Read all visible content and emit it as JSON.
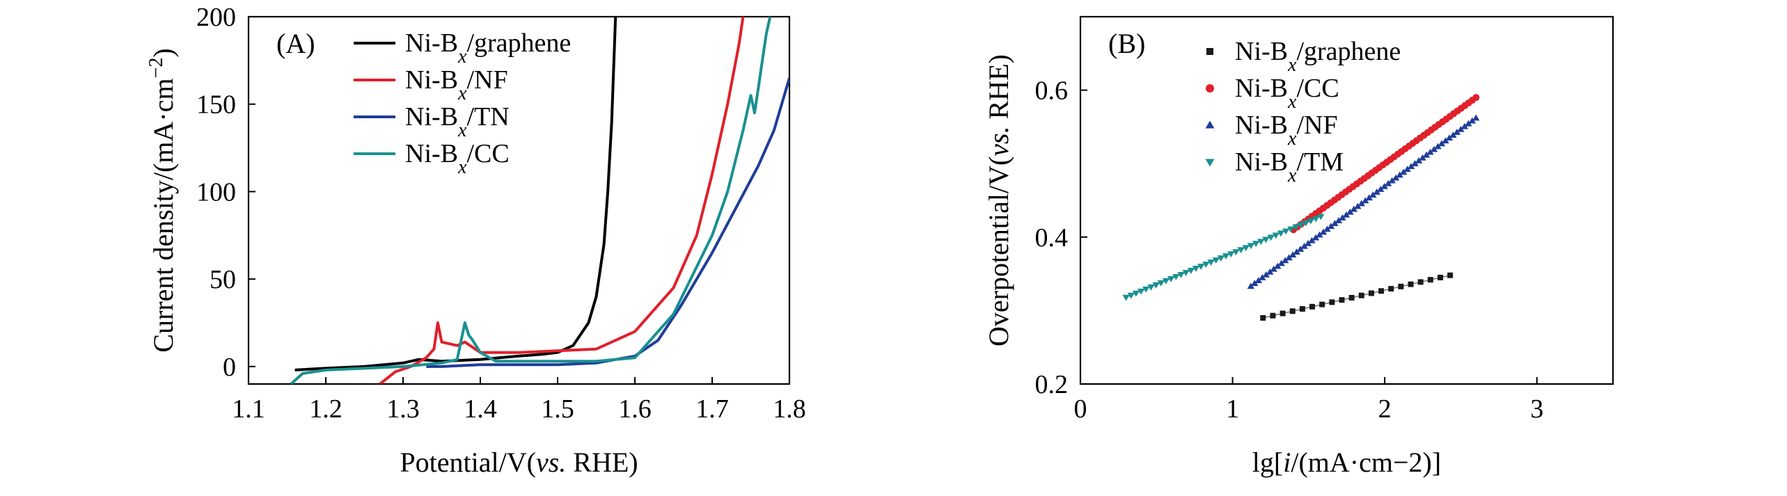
{
  "chart_data": [
    {
      "type": "line",
      "panel": "(A)",
      "xlabel": {
        "prefix": "Potential/V(",
        "italic": "vs.",
        "suffix": " RHE)"
      },
      "ylabel": {
        "prefix": "Current density/(mA·cm",
        "sup": "−2",
        "suffix": ")"
      },
      "xlim": [
        1.1,
        1.8
      ],
      "ylim": [
        -10,
        200
      ],
      "xticks": [
        1.1,
        1.2,
        1.3,
        1.4,
        1.5,
        1.6,
        1.7,
        1.8
      ],
      "xtick_labels": [
        "1.1",
        "1.2",
        "1.3",
        "1.4",
        "1.5",
        "1.6",
        "1.7",
        "1.8"
      ],
      "yticks": [
        0,
        50,
        100,
        150,
        200
      ],
      "ytick_labels": [
        "0",
        "50",
        "100",
        "150",
        "200"
      ],
      "legend_position": "top-center",
      "series": [
        {
          "name": "Ni-Bx/graphene",
          "label": {
            "base": "Ni-B",
            "sub": "x",
            "rest": "/graphene"
          },
          "color": "#000000",
          "points": [
            [
              1.16,
              -2
            ],
            [
              1.2,
              -1
            ],
            [
              1.25,
              0
            ],
            [
              1.3,
              2
            ],
            [
              1.32,
              4
            ],
            [
              1.35,
              3
            ],
            [
              1.4,
              4
            ],
            [
              1.45,
              6
            ],
            [
              1.48,
              7
            ],
            [
              1.5,
              8
            ],
            [
              1.52,
              12
            ],
            [
              1.54,
              25
            ],
            [
              1.55,
              40
            ],
            [
              1.56,
              70
            ],
            [
              1.565,
              100
            ],
            [
              1.57,
              140
            ],
            [
              1.575,
              200
            ]
          ]
        },
        {
          "name": "Ni-Bx/NF",
          "label": {
            "base": "Ni-B",
            "sub": "x",
            "rest": "/NF"
          },
          "color": "#e0202a",
          "points": [
            [
              1.27,
              -10
            ],
            [
              1.29,
              -3
            ],
            [
              1.31,
              0
            ],
            [
              1.33,
              5
            ],
            [
              1.34,
              10
            ],
            [
              1.345,
              25
            ],
            [
              1.35,
              14
            ],
            [
              1.37,
              12
            ],
            [
              1.38,
              14
            ],
            [
              1.4,
              8
            ],
            [
              1.45,
              8
            ],
            [
              1.5,
              9
            ],
            [
              1.55,
              10
            ],
            [
              1.6,
              20
            ],
            [
              1.65,
              45
            ],
            [
              1.68,
              75
            ],
            [
              1.7,
              110
            ],
            [
              1.72,
              150
            ],
            [
              1.735,
              185
            ],
            [
              1.74,
              200
            ]
          ]
        },
        {
          "name": "Ni-Bx/TN",
          "label": {
            "base": "Ni-B",
            "sub": "x",
            "rest": "/TN"
          },
          "color": "#1f3d99",
          "points": [
            [
              1.33,
              0
            ],
            [
              1.35,
              0
            ],
            [
              1.4,
              1
            ],
            [
              1.45,
              1
            ],
            [
              1.5,
              1
            ],
            [
              1.55,
              2
            ],
            [
              1.6,
              6
            ],
            [
              1.63,
              15
            ],
            [
              1.66,
              35
            ],
            [
              1.7,
              65
            ],
            [
              1.73,
              90
            ],
            [
              1.76,
              115
            ],
            [
              1.78,
              135
            ],
            [
              1.8,
              165
            ]
          ]
        },
        {
          "name": "Ni-Bx/CC",
          "label": {
            "base": "Ni-B",
            "sub": "x",
            "rest": "/CC"
          },
          "color": "#1a9090",
          "points": [
            [
              1.155,
              -10
            ],
            [
              1.17,
              -4
            ],
            [
              1.2,
              -2
            ],
            [
              1.3,
              0
            ],
            [
              1.35,
              2
            ],
            [
              1.37,
              4
            ],
            [
              1.38,
              25
            ],
            [
              1.385,
              18
            ],
            [
              1.39,
              15
            ],
            [
              1.4,
              8
            ],
            [
              1.42,
              3
            ],
            [
              1.5,
              3
            ],
            [
              1.55,
              3
            ],
            [
              1.6,
              5
            ],
            [
              1.65,
              30
            ],
            [
              1.7,
              75
            ],
            [
              1.72,
              100
            ],
            [
              1.74,
              135
            ],
            [
              1.75,
              155
            ],
            [
              1.755,
              145
            ],
            [
              1.76,
              160
            ],
            [
              1.77,
              190
            ],
            [
              1.775,
              200
            ]
          ]
        }
      ]
    },
    {
      "type": "scatter",
      "panel": "(B)",
      "xlabel": {
        "prefix": "lg[",
        "italic": "i",
        "suffix": "/(mA·cm−2)]"
      },
      "ylabel": {
        "prefix": "Overpotential/V(",
        "italic": "vs.",
        "suffix": " RHE)"
      },
      "xlim": [
        0,
        3.5
      ],
      "ylim": [
        0.2,
        0.7
      ],
      "xticks": [
        0,
        1,
        2,
        3
      ],
      "xtick_labels": [
        "0",
        "1",
        "2",
        "3"
      ],
      "yticks": [
        0.2,
        0.4,
        0.6
      ],
      "ytick_labels": [
        "0.2",
        "0.4",
        "0.6"
      ],
      "legend_position": "top-left",
      "series": [
        {
          "name": "Ni-Bx/graphene",
          "label": {
            "base": "Ni-B",
            "sub": "x",
            "rest": "/graphene"
          },
          "color": "#1a1a1a",
          "marker": "square",
          "x_range": [
            1.2,
            2.43
          ],
          "y_range": [
            0.29,
            0.348
          ],
          "n_points": 20
        },
        {
          "name": "Ni-Bx/CC",
          "label": {
            "base": "Ni-B",
            "sub": "x",
            "rest": "/CC"
          },
          "color": "#e0202a",
          "marker": "circle",
          "x_range": [
            1.4,
            2.6
          ],
          "y_range": [
            0.41,
            0.59
          ],
          "n_points": 50
        },
        {
          "name": "Ni-Bx/NF",
          "label": {
            "base": "Ni-B",
            "sub": "x",
            "rest": "/NF"
          },
          "color": "#1f3d99",
          "marker": "triangle-up",
          "x_range": [
            1.12,
            2.6
          ],
          "y_range": [
            0.333,
            0.562
          ],
          "n_points": 60
        },
        {
          "name": "Ni-Bx/TM",
          "label": {
            "base": "Ni-B",
            "sub": "x",
            "rest": "/TM"
          },
          "color": "#1a9090",
          "marker": "triangle-down",
          "x_range": [
            0.3,
            1.58
          ],
          "y_range": [
            0.318,
            0.428
          ],
          "n_points": 40
        }
      ]
    }
  ]
}
